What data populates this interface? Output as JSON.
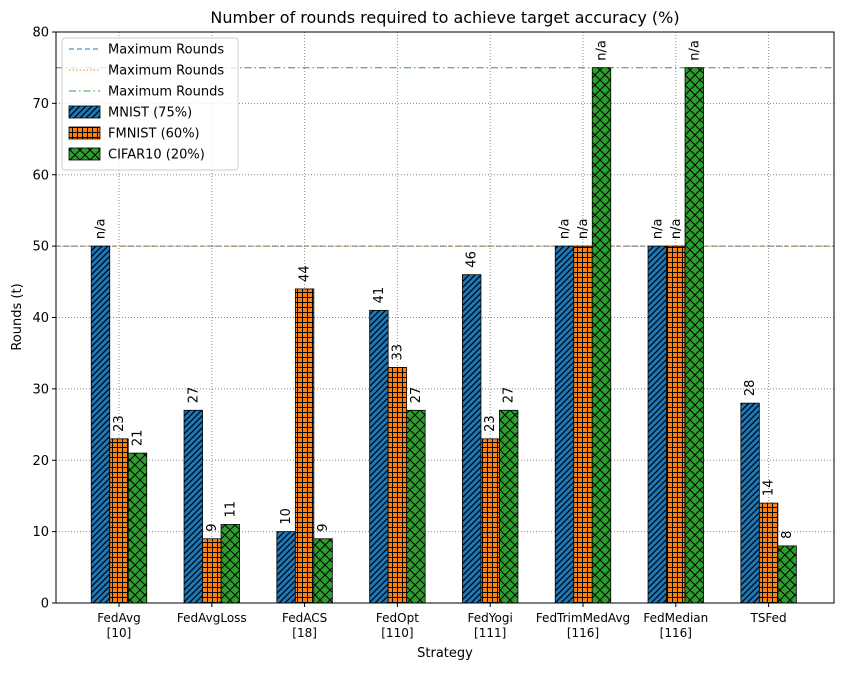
{
  "chart_data": {
    "type": "bar",
    "title": "Number of rounds required to achieve target accuracy (%)",
    "xlabel": "Strategy",
    "ylabel": "Rounds (t)",
    "ylim": [
      0,
      80
    ],
    "yticks": [
      0,
      10,
      20,
      30,
      40,
      50,
      60,
      70,
      80
    ],
    "grid": true,
    "legend_position": "top-left",
    "categories": [
      [
        "FedAvg",
        "[10]"
      ],
      [
        "FedAvgLoss"
      ],
      [
        "FedACS",
        "[18]"
      ],
      [
        "FedOpt",
        "[110]"
      ],
      [
        "FedYogi",
        "[111]"
      ],
      [
        "FedTrimMedAvg",
        "[116]"
      ],
      [
        "FedMedian",
        "[116]"
      ],
      [
        "TSFed"
      ]
    ],
    "series": [
      {
        "name": "MNIST (75%)",
        "color": "#1f77b4",
        "hatch": "diagonal",
        "values": [
          50,
          27,
          10,
          41,
          46,
          50,
          50,
          28
        ],
        "labels": [
          "n/a",
          "27",
          "10",
          "41",
          "46",
          "n/a",
          "n/a",
          "28"
        ]
      },
      {
        "name": "FMNIST (60%)",
        "color": "#ff7f0e",
        "hatch": "grid",
        "values": [
          23,
          9,
          44,
          33,
          23,
          50,
          50,
          14
        ],
        "labels": [
          "23",
          "9",
          "44",
          "33",
          "23",
          "n/a",
          "n/a",
          "14"
        ]
      },
      {
        "name": "CIFAR10 (20%)",
        "color": "#2ca02c",
        "hatch": "cross",
        "values": [
          21,
          11,
          9,
          27,
          27,
          75,
          75,
          8
        ],
        "labels": [
          "21",
          "11",
          "9",
          "27",
          "27",
          "n/a",
          "n/a",
          "8"
        ]
      }
    ],
    "reference_lines": [
      {
        "name": "Maximum Rounds",
        "value": 50,
        "color": "#1f77b4",
        "style": "dashed"
      },
      {
        "name": "Maximum Rounds",
        "value": 50,
        "color": "#ff7f0e",
        "style": "dotted"
      },
      {
        "name": "Maximum Rounds",
        "value": 75,
        "color": "#2ca02c",
        "style": "dashdot"
      }
    ]
  }
}
